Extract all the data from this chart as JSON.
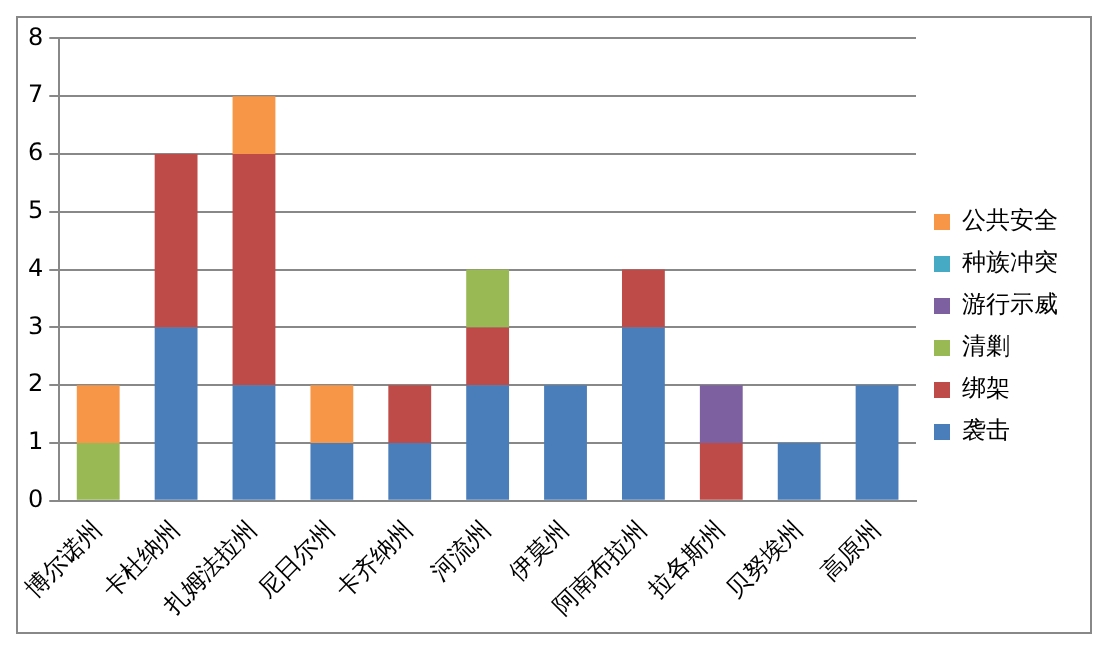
{
  "chart_data": {
    "type": "bar",
    "stacked": true,
    "categories": [
      "博尔诺州",
      "卡杜纳州",
      "扎姆法拉州",
      "尼日尔州",
      "卡齐纳州",
      "河流州",
      "伊莫州",
      "阿南布拉州",
      "拉各斯州",
      "贝努埃州",
      "高原州"
    ],
    "series": [
      {
        "name": "袭击",
        "color": "#4a7ebb",
        "values": [
          0,
          3,
          2,
          1,
          1,
          2,
          2,
          3,
          0,
          1,
          2
        ]
      },
      {
        "name": "绑架",
        "color": "#be4b48",
        "values": [
          0,
          3,
          4,
          0,
          1,
          1,
          0,
          1,
          1,
          0,
          0
        ]
      },
      {
        "name": "清剿",
        "color": "#98b954",
        "values": [
          1,
          0,
          0,
          0,
          0,
          1,
          0,
          0,
          0,
          0,
          0
        ]
      },
      {
        "name": "游行示威",
        "color": "#7d60a0",
        "values": [
          0,
          0,
          0,
          0,
          0,
          0,
          0,
          0,
          1,
          0,
          0
        ]
      },
      {
        "name": "种族冲突",
        "color": "#46aac5",
        "values": [
          0,
          0,
          0,
          0,
          0,
          0,
          0,
          0,
          0,
          0,
          0
        ]
      },
      {
        "name": "公共安全",
        "color": "#f79646",
        "values": [
          1,
          0,
          1,
          1,
          0,
          0,
          0,
          0,
          0,
          0,
          0
        ]
      }
    ],
    "ylim": [
      0,
      8
    ],
    "yticks": [
      0,
      1,
      2,
      3,
      4,
      5,
      6,
      7,
      8
    ],
    "grid": "y",
    "legend": "right"
  }
}
